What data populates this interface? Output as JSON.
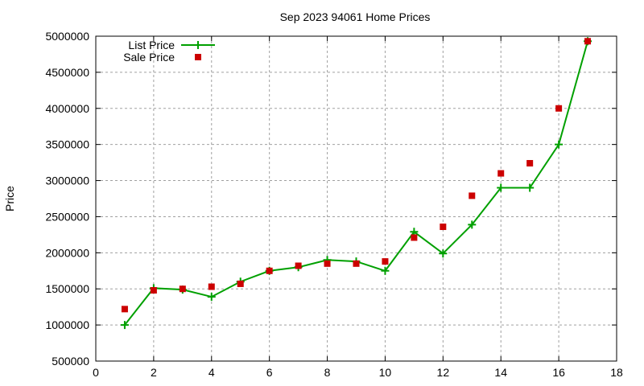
{
  "chart_data": {
    "type": "line",
    "title": "Sep 2023 94061 Home Prices",
    "xlabel": "",
    "ylabel": "Price",
    "xlim": [
      0,
      18
    ],
    "ylim": [
      500000,
      5000000
    ],
    "xticks": [
      0,
      2,
      4,
      6,
      8,
      10,
      12,
      14,
      16,
      18
    ],
    "yticks": [
      500000,
      1000000,
      1500000,
      2000000,
      2500000,
      3000000,
      3500000,
      4000000,
      4500000,
      5000000
    ],
    "grid": true,
    "legend_position": "top-left",
    "x": [
      1,
      2,
      3,
      4,
      5,
      6,
      7,
      8,
      9,
      10,
      11,
      12,
      13,
      14,
      15,
      16,
      17
    ],
    "series": [
      {
        "name": "List Price",
        "style": "linespoints",
        "color": "#00a000",
        "marker": "plus",
        "values": [
          1000000,
          1510000,
          1490000,
          1390000,
          1600000,
          1750000,
          1800000,
          1900000,
          1880000,
          1750000,
          2290000,
          1990000,
          2390000,
          2900000,
          2900000,
          3500000,
          4930000
        ]
      },
      {
        "name": "Sale Price",
        "style": "points",
        "color": "#cc0000",
        "marker": "square",
        "values": [
          1220000,
          1480000,
          1500000,
          1530000,
          1570000,
          1750000,
          1820000,
          1850000,
          1850000,
          1880000,
          2210000,
          2360000,
          2790000,
          3100000,
          3240000,
          4000000,
          4930000
        ]
      }
    ]
  }
}
